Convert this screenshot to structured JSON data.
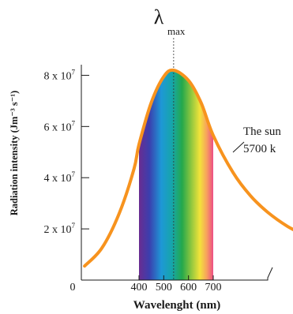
{
  "chart_data": {
    "type": "line",
    "title": "",
    "peak_label": "λ",
    "peak_label_sub": "max",
    "xlabel": "Wavelenght (nm)",
    "ylabel": "Radiation intensity (Jm⁻³ s⁻¹)",
    "origin_label": "0",
    "x_ticks": [
      400,
      500,
      600,
      700
    ],
    "x_tick_labels": [
      "400",
      "500",
      "600",
      "700"
    ],
    "y_ticks": [
      20000000,
      40000000,
      60000000,
      80000000
    ],
    "y_tick_base": [
      "2 x 10",
      "4 x 10",
      "6 x 10",
      "8 x 10"
    ],
    "y_tick_exp": [
      "7",
      "7",
      "7",
      "7"
    ],
    "ylim": [
      0,
      90000000
    ],
    "visible_band_nm": [
      400,
      700
    ],
    "lambda_max_nm": 540,
    "series": [
      {
        "name": "The sun 5700 k",
        "label_lines": [
          "The sun",
          "5700 k"
        ],
        "color": "#f7931e",
        "x": [
          180,
          250,
          320,
          380,
          400,
          450,
          500,
          540,
          600,
          650,
          700,
          780,
          850,
          920,
          1000,
          1080
        ],
        "y": [
          5500000,
          12500000,
          26000000,
          43500000,
          53000000,
          69500000,
          79500000,
          82000000,
          78000000,
          69500000,
          56500000,
          42000000,
          33000000,
          26500000,
          21000000,
          17000000
        ]
      }
    ],
    "grid": false,
    "legend": "none"
  }
}
